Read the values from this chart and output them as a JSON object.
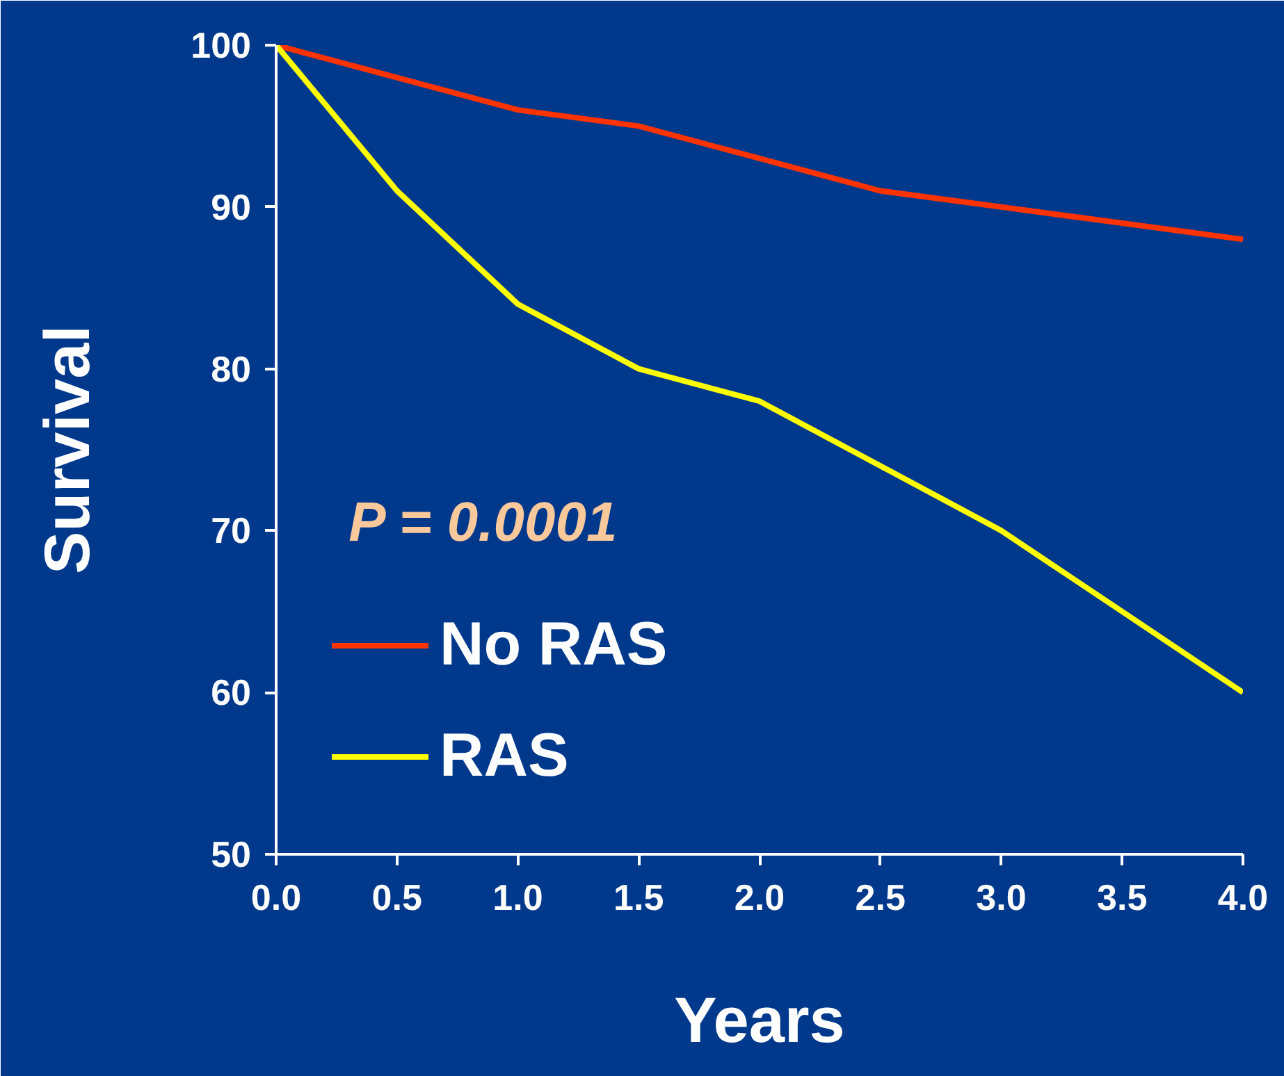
{
  "chart_data": {
    "type": "line",
    "xlabel": "Years",
    "ylabel": "Survival",
    "x": [
      0,
      0.5,
      1,
      1.5,
      2,
      2.5,
      3,
      3.5,
      4
    ],
    "series": [
      {
        "name": "No RAS",
        "color": "#ff3300",
        "values": [
          100,
          98,
          96,
          95,
          93,
          91,
          90,
          89,
          88
        ]
      },
      {
        "name": "RAS",
        "color": "#ffff00",
        "values": [
          100,
          91,
          84,
          80,
          78,
          74,
          70,
          65,
          60
        ]
      }
    ],
    "xlim": [
      0,
      4
    ],
    "ylim": [
      50,
      100
    ],
    "xticks": [
      {
        "value": 0,
        "label": "0.0"
      },
      {
        "value": 0.5,
        "label": "0.5"
      },
      {
        "value": 1,
        "label": "1.0"
      },
      {
        "value": 1.5,
        "label": "1.5"
      },
      {
        "value": 2,
        "label": "2.0"
      },
      {
        "value": 2.5,
        "label": "2.5"
      },
      {
        "value": 3,
        "label": "3.0"
      },
      {
        "value": 3.5,
        "label": "3.5"
      },
      {
        "value": 4,
        "label": "4.0"
      }
    ],
    "yticks": [
      50,
      60,
      70,
      80,
      90,
      100
    ],
    "annotations": [
      "P = 0.0001"
    ],
    "legend": "bottom left",
    "grid": false,
    "marker": "none",
    "line_style": "solid"
  }
}
